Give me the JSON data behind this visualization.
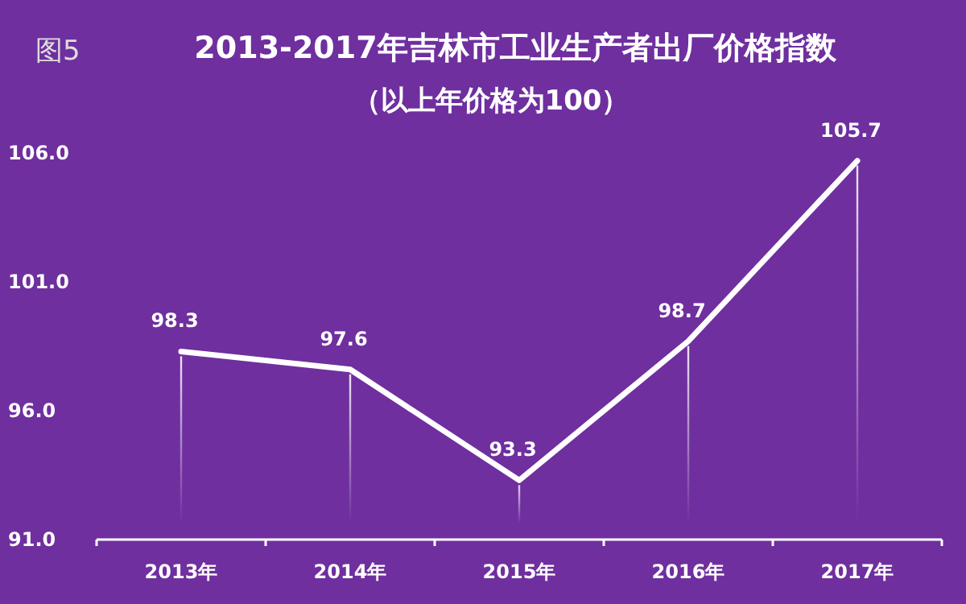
{
  "chart_data": {
    "type": "line",
    "title": "2013-2017年吉林市工业生产者出厂价格指数",
    "subtitle": "（以上年价格为100）",
    "annotations": [
      "图5"
    ],
    "categories": [
      "2013年",
      "2014年",
      "2015年",
      "2016年",
      "2017年"
    ],
    "series": [
      {
        "color": "#ffffff",
        "values": [
          98.3,
          97.6,
          93.3,
          98.7,
          105.7
        ]
      }
    ],
    "ylim": [
      91,
      106
    ],
    "yticks": [
      {
        "value": 91,
        "label": "91.0"
      },
      {
        "value": 96,
        "label": "96.0"
      },
      {
        "value": 101,
        "label": "101.0"
      },
      {
        "value": 106,
        "label": "106.0"
      }
    ],
    "data_labels": true,
    "grid": "x",
    "marker": "none",
    "line_style": "solid"
  }
}
